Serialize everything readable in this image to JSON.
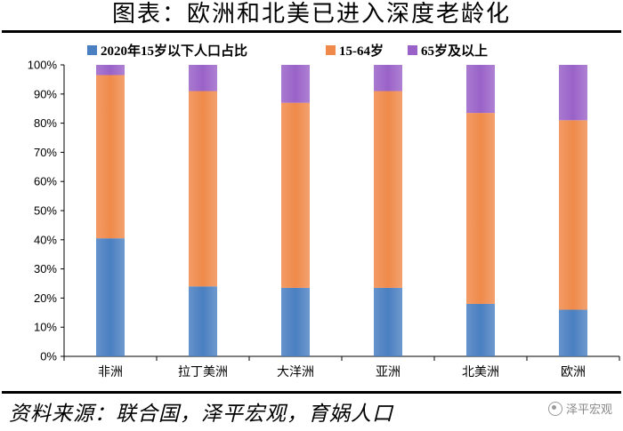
{
  "title": "图表：欧洲和北美已进入深度老龄化",
  "source": "资料来源：联合国，泽平宏观，育娲人口",
  "watermark": "泽平宏观",
  "colors": {
    "under15": "#4a7fc1",
    "age15_64": "#f08a4b",
    "age65plus": "#9a62c8"
  },
  "chart_data": {
    "type": "bar",
    "stacked": true,
    "percent": true,
    "categories": [
      "非洲",
      "拉丁美洲",
      "大洋洲",
      "亚洲",
      "北美洲",
      "欧洲"
    ],
    "series": [
      {
        "name": "2020年15岁以下人口占比",
        "values": [
          40.5,
          24.0,
          23.5,
          23.5,
          18.0,
          16.0
        ]
      },
      {
        "name": "15-64岁",
        "values": [
          56.0,
          67.0,
          63.5,
          67.5,
          65.5,
          65.0
        ]
      },
      {
        "name": "65岁及以上",
        "values": [
          3.5,
          9.0,
          13.0,
          9.0,
          16.5,
          19.0
        ]
      }
    ],
    "ylim": [
      0,
      100
    ],
    "yticks": [
      "0%",
      "10%",
      "20%",
      "30%",
      "40%",
      "50%",
      "60%",
      "70%",
      "80%",
      "90%",
      "100%"
    ],
    "legend": "top"
  }
}
